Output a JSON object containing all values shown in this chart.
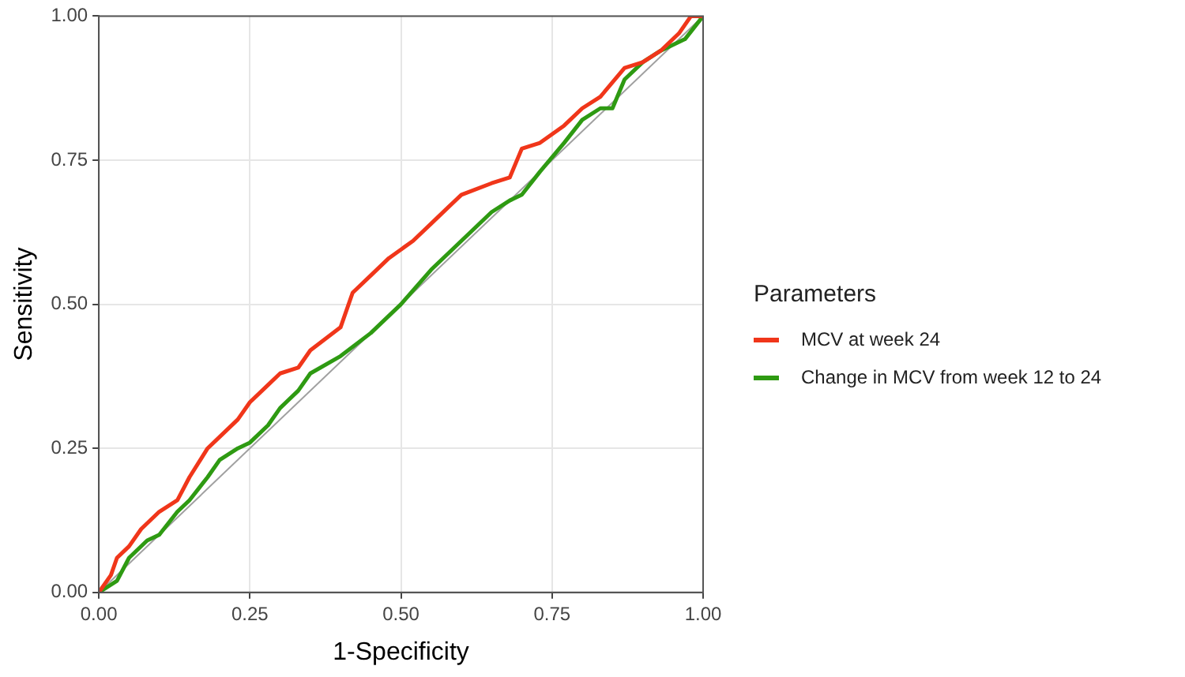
{
  "chart_data": {
    "type": "line",
    "xlabel": "1-Specificity",
    "ylabel": "Sensitivity",
    "legend_title": "Parameters",
    "legend": "right",
    "grid": true,
    "marker": "none",
    "line_style": "solid",
    "xlim": [
      0,
      1
    ],
    "ylim": [
      0,
      1
    ],
    "xticks": [
      {
        "value": 0,
        "label": "0.00"
      },
      {
        "value": 0.25,
        "label": "0.25"
      },
      {
        "value": 0.5,
        "label": "0.50"
      },
      {
        "value": 0.75,
        "label": "0.75"
      },
      {
        "value": 1,
        "label": "1.00"
      }
    ],
    "yticks": [
      {
        "value": 0,
        "label": "0.00"
      },
      {
        "value": 0.25,
        "label": "0.25"
      },
      {
        "value": 0.5,
        "label": "0.50"
      },
      {
        "value": 0.75,
        "label": "0.75"
      },
      {
        "value": 1,
        "label": "1.00"
      }
    ],
    "series": [
      {
        "name": "MCV at week 24",
        "color": "#f0361a",
        "x": [
          0,
          0.02,
          0.03,
          0.05,
          0.07,
          0.1,
          0.13,
          0.15,
          0.18,
          0.2,
          0.23,
          0.25,
          0.28,
          0.3,
          0.33,
          0.35,
          0.4,
          0.42,
          0.45,
          0.48,
          0.52,
          0.55,
          0.58,
          0.6,
          0.65,
          0.68,
          0.7,
          0.73,
          0.77,
          0.8,
          0.83,
          0.87,
          0.9,
          0.93,
          0.96,
          0.98,
          1
        ],
        "values": [
          0,
          0.03,
          0.06,
          0.08,
          0.11,
          0.14,
          0.16,
          0.2,
          0.25,
          0.27,
          0.3,
          0.33,
          0.36,
          0.38,
          0.39,
          0.42,
          0.46,
          0.52,
          0.55,
          0.58,
          0.61,
          0.64,
          0.67,
          0.69,
          0.71,
          0.72,
          0.77,
          0.78,
          0.81,
          0.84,
          0.86,
          0.91,
          0.92,
          0.94,
          0.97,
          1,
          1
        ]
      },
      {
        "name": "Change in MCV from week 12 to 24",
        "color": "#2e9a12",
        "x": [
          0,
          0.03,
          0.05,
          0.08,
          0.1,
          0.13,
          0.15,
          0.18,
          0.2,
          0.23,
          0.25,
          0.28,
          0.3,
          0.33,
          0.35,
          0.4,
          0.45,
          0.5,
          0.55,
          0.6,
          0.65,
          0.68,
          0.7,
          0.73,
          0.77,
          0.8,
          0.83,
          0.85,
          0.87,
          0.9,
          0.93,
          0.97,
          1
        ],
        "values": [
          0,
          0.02,
          0.06,
          0.09,
          0.1,
          0.14,
          0.16,
          0.2,
          0.23,
          0.25,
          0.26,
          0.29,
          0.32,
          0.35,
          0.38,
          0.41,
          0.45,
          0.5,
          0.56,
          0.61,
          0.66,
          0.68,
          0.69,
          0.73,
          0.78,
          0.82,
          0.84,
          0.84,
          0.89,
          0.92,
          0.94,
          0.96,
          1
        ]
      },
      {
        "type": "line",
        "color": "#a0a0a0",
        "x": [
          0,
          1
        ],
        "values": [
          0,
          1
        ]
      }
    ]
  }
}
